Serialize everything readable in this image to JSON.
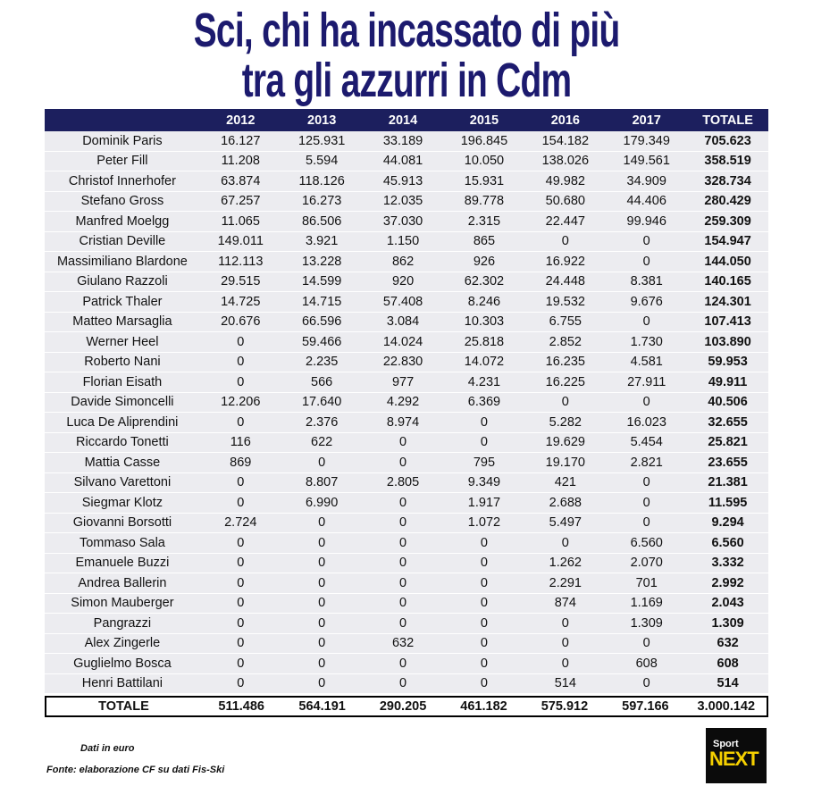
{
  "title": {
    "line1": "Sci, chi ha incassato di più",
    "line2": "tra gli azzurri in Cdm"
  },
  "table": {
    "columns": [
      "2012",
      "2013",
      "2014",
      "2015",
      "2016",
      "2017",
      "TOTALE"
    ],
    "rows": [
      [
        "Dominik Paris",
        "16.127",
        "125.931",
        "33.189",
        "196.845",
        "154.182",
        "179.349",
        "705.623"
      ],
      [
        "Peter Fill",
        "11.208",
        "5.594",
        "44.081",
        "10.050",
        "138.026",
        "149.561",
        "358.519"
      ],
      [
        "Christof Innerhofer",
        "63.874",
        "118.126",
        "45.913",
        "15.931",
        "49.982",
        "34.909",
        "328.734"
      ],
      [
        "Stefano Gross",
        "67.257",
        "16.273",
        "12.035",
        "89.778",
        "50.680",
        "44.406",
        "280.429"
      ],
      [
        "Manfred Moelgg",
        "11.065",
        "86.506",
        "37.030",
        "2.315",
        "22.447",
        "99.946",
        "259.309"
      ],
      [
        "Cristian Deville",
        "149.011",
        "3.921",
        "1.150",
        "865",
        "0",
        "0",
        "154.947"
      ],
      [
        "Massimiliano Blardone",
        "112.113",
        "13.228",
        "862",
        "926",
        "16.922",
        "0",
        "144.050"
      ],
      [
        "Giulano Razzoli",
        "29.515",
        "14.599",
        "920",
        "62.302",
        "24.448",
        "8.381",
        "140.165"
      ],
      [
        "Patrick Thaler",
        "14.725",
        "14.715",
        "57.408",
        "8.246",
        "19.532",
        "9.676",
        "124.301"
      ],
      [
        "Matteo Marsaglia",
        "20.676",
        "66.596",
        "3.084",
        "10.303",
        "6.755",
        "0",
        "107.413"
      ],
      [
        "Werner Heel",
        "0",
        "59.466",
        "14.024",
        "25.818",
        "2.852",
        "1.730",
        "103.890"
      ],
      [
        "Roberto Nani",
        "0",
        "2.235",
        "22.830",
        "14.072",
        "16.235",
        "4.581",
        "59.953"
      ],
      [
        "Florian Eisath",
        "0",
        "566",
        "977",
        "4.231",
        "16.225",
        "27.911",
        "49.911"
      ],
      [
        "Davide Simoncelli",
        "12.206",
        "17.640",
        "4.292",
        "6.369",
        "0",
        "0",
        "40.506"
      ],
      [
        "Luca De Aliprendini",
        "0",
        "2.376",
        "8.974",
        "0",
        "5.282",
        "16.023",
        "32.655"
      ],
      [
        "Riccardo Tonetti",
        "116",
        "622",
        "0",
        "0",
        "19.629",
        "5.454",
        "25.821"
      ],
      [
        "Mattia Casse",
        "869",
        "0",
        "0",
        "795",
        "19.170",
        "2.821",
        "23.655"
      ],
      [
        "Silvano Varettoni",
        "0",
        "8.807",
        "2.805",
        "9.349",
        "421",
        "0",
        "21.381"
      ],
      [
        "Siegmar Klotz",
        "0",
        "6.990",
        "0",
        "1.917",
        "2.688",
        "0",
        "11.595"
      ],
      [
        "Giovanni Borsotti",
        "2.724",
        "0",
        "0",
        "1.072",
        "5.497",
        "0",
        "9.294"
      ],
      [
        "Tommaso Sala",
        "0",
        "0",
        "0",
        "0",
        "0",
        "6.560",
        "6.560"
      ],
      [
        "Emanuele Buzzi",
        "0",
        "0",
        "0",
        "0",
        "1.262",
        "2.070",
        "3.332"
      ],
      [
        "Andrea Ballerin",
        "0",
        "0",
        "0",
        "0",
        "2.291",
        "701",
        "2.992"
      ],
      [
        "Simon Mauberger",
        "0",
        "0",
        "0",
        "0",
        "874",
        "1.169",
        "2.043"
      ],
      [
        "Pangrazzi",
        "0",
        "0",
        "0",
        "0",
        "0",
        "1.309",
        "1.309"
      ],
      [
        "Alex Zingerle",
        "0",
        "0",
        "632",
        "0",
        "0",
        "0",
        "632"
      ],
      [
        "Guglielmo Bosca",
        "0",
        "0",
        "0",
        "0",
        "0",
        "608",
        "608"
      ],
      [
        "Henri Battilani",
        "0",
        "0",
        "0",
        "0",
        "514",
        "0",
        "514"
      ]
    ],
    "total": [
      "TOTALE",
      "511.486",
      "564.191",
      "290.205",
      "461.182",
      "575.912",
      "597.166",
      "3.000.142"
    ]
  },
  "footer": {
    "note": "Dati in euro",
    "source": "Fonte: elaborazione CF su dati Fis-Ski"
  },
  "logo": {
    "top": "Sport",
    "bottom": "NEXT"
  }
}
